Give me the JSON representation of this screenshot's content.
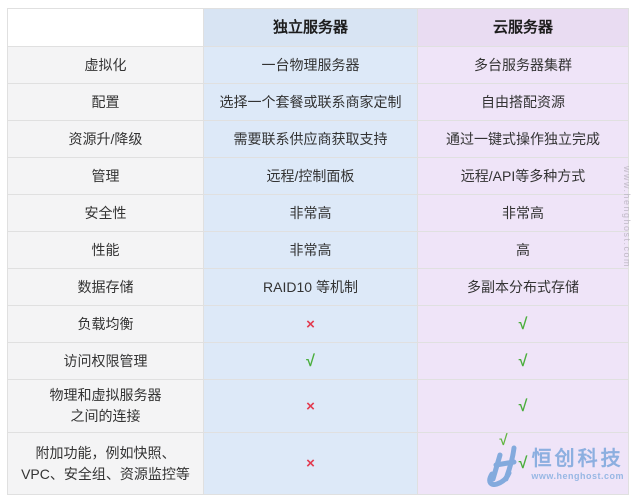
{
  "table": {
    "header": {
      "blank": "",
      "dedicated": "独立服务器",
      "cloud": "云服务器"
    },
    "rows": [
      {
        "label_lines": [
          "虚拟化"
        ],
        "dedicated": {
          "type": "text",
          "value": "一台物理服务器"
        },
        "cloud": {
          "type": "text",
          "value": "多台服务器集群"
        }
      },
      {
        "label_lines": [
          "配置"
        ],
        "dedicated": {
          "type": "text",
          "value": "选择一个套餐或联系商家定制"
        },
        "cloud": {
          "type": "text",
          "value": "自由搭配资源"
        }
      },
      {
        "label_lines": [
          "资源升/降级"
        ],
        "dedicated": {
          "type": "text",
          "value": "需要联系供应商获取支持"
        },
        "cloud": {
          "type": "text",
          "value": "通过一键式操作独立完成"
        }
      },
      {
        "label_lines": [
          "管理"
        ],
        "dedicated": {
          "type": "text",
          "value": "远程/控制面板"
        },
        "cloud": {
          "type": "text",
          "value": "远程/API等多种方式"
        }
      },
      {
        "label_lines": [
          "安全性"
        ],
        "dedicated": {
          "type": "text",
          "value": "非常高"
        },
        "cloud": {
          "type": "text",
          "value": "非常高"
        }
      },
      {
        "label_lines": [
          "性能"
        ],
        "dedicated": {
          "type": "text",
          "value": "非常高"
        },
        "cloud": {
          "type": "text",
          "value": "高"
        }
      },
      {
        "label_lines": [
          "数据存储"
        ],
        "dedicated": {
          "type": "text",
          "value": "RAID10 等机制"
        },
        "cloud": {
          "type": "text",
          "value": "多副本分布式存储"
        }
      },
      {
        "label_lines": [
          "负载均衡"
        ],
        "dedicated": {
          "type": "mark",
          "value": "cross"
        },
        "cloud": {
          "type": "mark",
          "value": "check"
        }
      },
      {
        "label_lines": [
          "访问权限管理"
        ],
        "dedicated": {
          "type": "mark",
          "value": "check"
        },
        "cloud": {
          "type": "mark",
          "value": "check"
        }
      },
      {
        "label_lines": [
          "物理和虚拟服务器",
          "之间的连接"
        ],
        "dedicated": {
          "type": "mark",
          "value": "cross"
        },
        "cloud": {
          "type": "mark",
          "value": "check"
        }
      },
      {
        "label_lines": [
          "附加功能，例如快照、",
          "VPC、安全组、资源监控等"
        ],
        "dedicated": {
          "type": "mark",
          "value": "cross"
        },
        "cloud": {
          "type": "mark",
          "value": "check"
        }
      }
    ]
  },
  "marks": {
    "check": {
      "glyph": "√",
      "color": "#4aae3c"
    },
    "cross": {
      "glyph": "×",
      "color": "#e23b50"
    }
  },
  "watermark": {
    "brand": "恒创科技",
    "url": "www.henghost.com",
    "side_text": "www.henghost.com",
    "logo_color": "#7aa6db",
    "logo_check_color": "#55b332"
  },
  "colors": {
    "header_dedicated_bg": "#d8e4f3",
    "header_cloud_bg": "#e9dcf2",
    "body_dedicated_bg": "#dde9f8",
    "body_cloud_bg": "#efe4f8",
    "label_column_bg": "#f4f4f5",
    "border": "#e0e0e0",
    "text": "#333333"
  },
  "chart_data": {
    "type": "table",
    "columns": [
      "",
      "独立服务器",
      "云服务器"
    ],
    "rows": [
      [
        "虚拟化",
        "一台物理服务器",
        "多台服务器集群"
      ],
      [
        "配置",
        "选择一个套餐或联系商家定制",
        "自由搭配资源"
      ],
      [
        "资源升/降级",
        "需要联系供应商获取支持",
        "通过一键式操作独立完成"
      ],
      [
        "管理",
        "远程/控制面板",
        "远程/API等多种方式"
      ],
      [
        "安全性",
        "非常高",
        "非常高"
      ],
      [
        "性能",
        "非常高",
        "高"
      ],
      [
        "数据存储",
        "RAID10 等机制",
        "多副本分布式存储"
      ],
      [
        "负载均衡",
        "✗",
        "✓"
      ],
      [
        "访问权限管理",
        "✓",
        "✓"
      ],
      [
        "物理和虚拟服务器之间的连接",
        "✗",
        "✓"
      ],
      [
        "附加功能，例如快照、VPC、安全组、资源监控等",
        "✗",
        "✓"
      ]
    ]
  }
}
